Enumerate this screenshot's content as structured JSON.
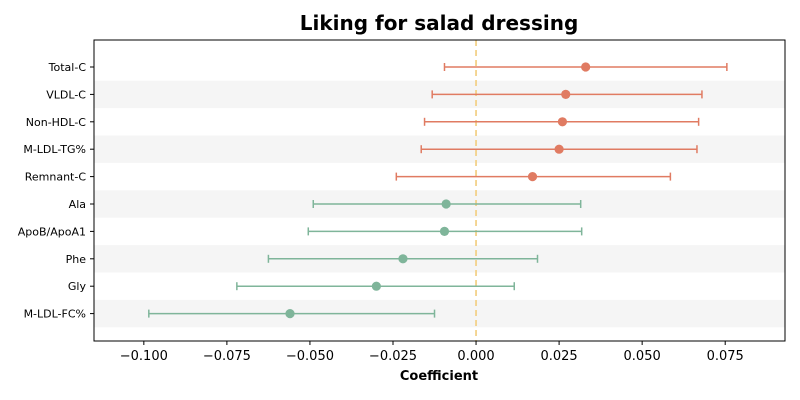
{
  "chart_data": {
    "type": "scatter",
    "subtype": "forest-plot",
    "title": "Liking for salad dressing",
    "xlabel": "Coefficient",
    "ylabel": "",
    "xlim": [
      -0.115,
      0.093
    ],
    "xticks": [
      -0.1,
      -0.075,
      -0.05,
      -0.025,
      0.0,
      0.025,
      0.05,
      0.075
    ],
    "xtick_labels": [
      "−0.100",
      "−0.075",
      "−0.050",
      "−0.025",
      "0.000",
      "0.025",
      "0.050",
      "0.075"
    ],
    "reference_line": {
      "x": 0.0,
      "style": "dashed",
      "color": "#f3d28a"
    },
    "alternating_row_bands": true,
    "colors": {
      "positive": "#e07b62",
      "negative": "#7fb59a",
      "band": "#f5f5f5"
    },
    "rows": [
      {
        "label": "Total-C",
        "estimate": 0.033,
        "lower": -0.0095,
        "upper": 0.0755,
        "group": "positive"
      },
      {
        "label": "VLDL-C",
        "estimate": 0.027,
        "lower": -0.0132,
        "upper": 0.068,
        "group": "positive"
      },
      {
        "label": "Non-HDL-C",
        "estimate": 0.026,
        "lower": -0.0155,
        "upper": 0.067,
        "group": "positive"
      },
      {
        "label": "M-LDL-TG%",
        "estimate": 0.025,
        "lower": -0.0165,
        "upper": 0.0665,
        "group": "positive"
      },
      {
        "label": "Remnant-C",
        "estimate": 0.017,
        "lower": -0.024,
        "upper": 0.0585,
        "group": "positive"
      },
      {
        "label": "Ala",
        "estimate": -0.009,
        "lower": -0.049,
        "upper": 0.0315,
        "group": "negative"
      },
      {
        "label": "ApoB/ApoA1",
        "estimate": -0.0095,
        "lower": -0.0505,
        "upper": 0.0318,
        "group": "negative"
      },
      {
        "label": "Phe",
        "estimate": -0.022,
        "lower": -0.0625,
        "upper": 0.0185,
        "group": "negative"
      },
      {
        "label": "Gly",
        "estimate": -0.03,
        "lower": -0.072,
        "upper": 0.0115,
        "group": "negative"
      },
      {
        "label": "M-LDL-FC%",
        "estimate": -0.056,
        "lower": -0.0985,
        "upper": -0.0125,
        "group": "negative"
      }
    ]
  }
}
